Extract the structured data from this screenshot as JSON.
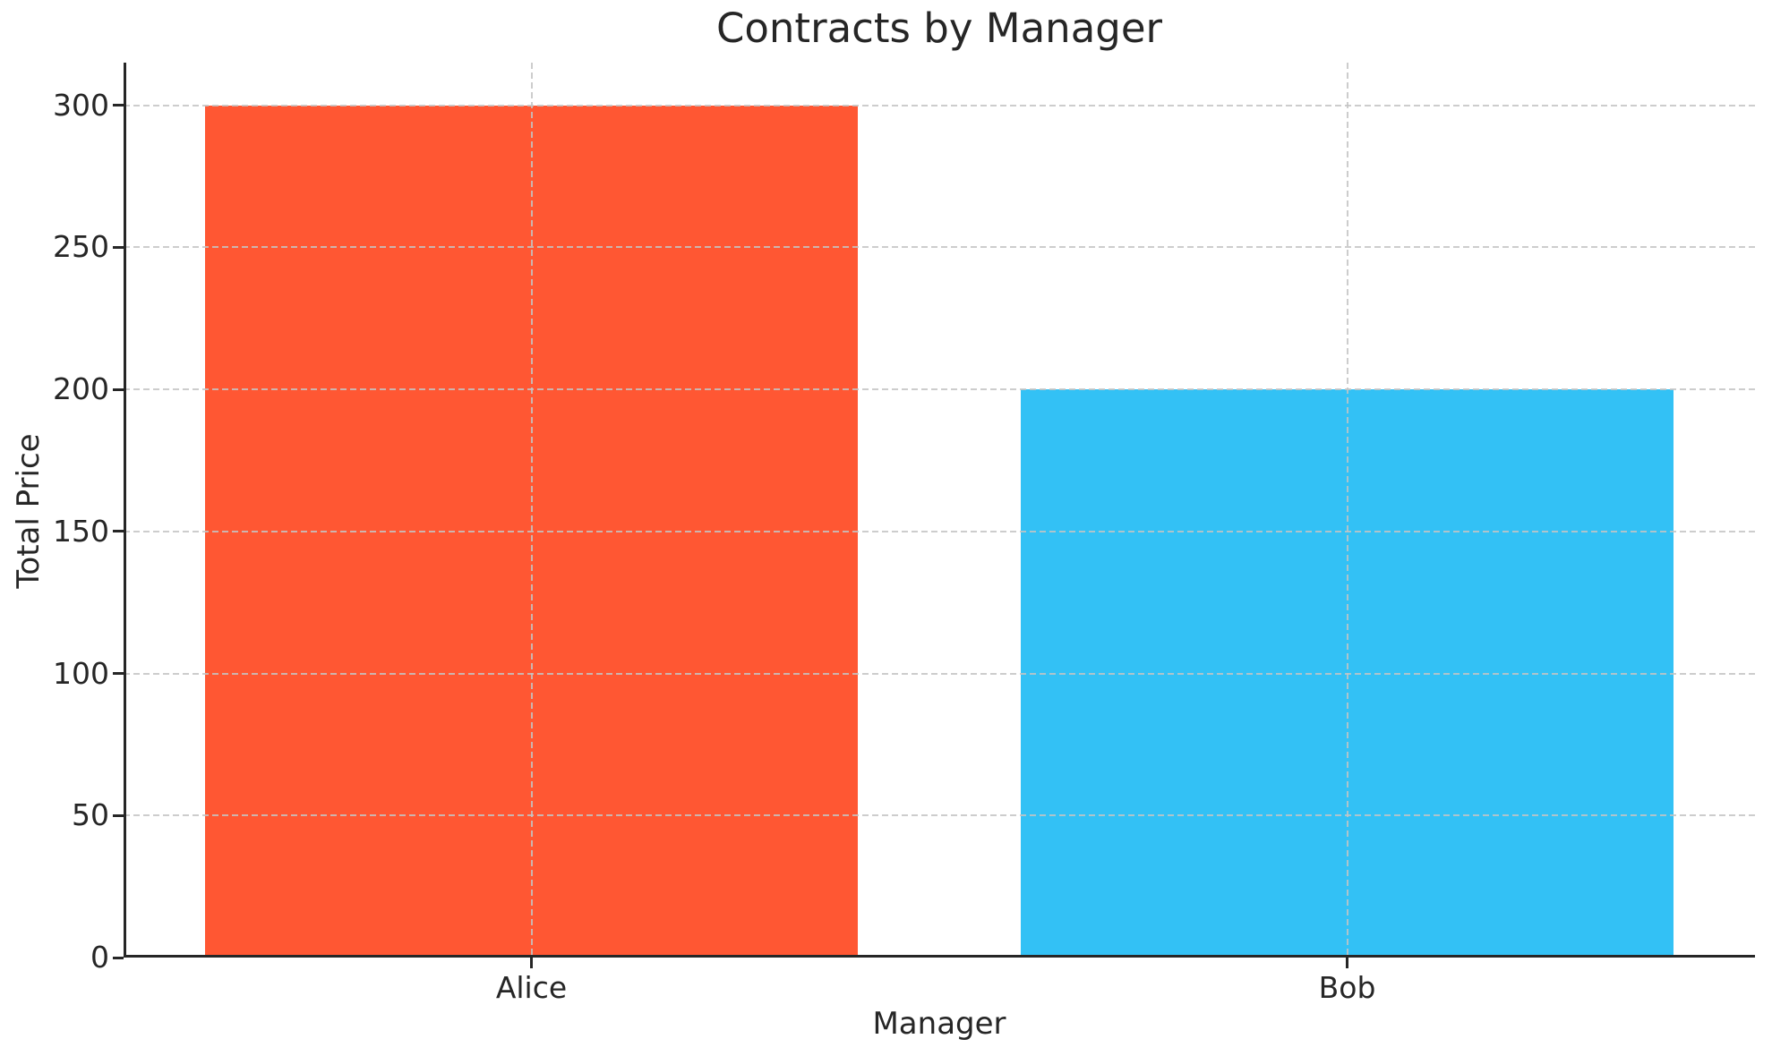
{
  "chart_data": {
    "type": "bar",
    "title": "Contracts by Manager",
    "xlabel": "Manager",
    "ylabel": "Total Price",
    "categories": [
      "Alice",
      "Bob"
    ],
    "values": [
      300,
      200
    ],
    "bar_colors": [
      "#FF5733",
      "#33C1F5"
    ],
    "yticks": [
      0,
      50,
      100,
      150,
      200,
      250,
      300
    ],
    "ytick_labels": [
      "0",
      "50",
      "100",
      "150",
      "200",
      "250",
      "300"
    ],
    "ylim": [
      0,
      315
    ],
    "xlim": [
      -0.5,
      1.5
    ],
    "bar_width": 0.8,
    "grid": true,
    "grid_line_style": "dashed",
    "grid_color": "#c4c4c4",
    "axis_color": "#262626",
    "text_color": "#262626",
    "background_color": "#ffffff",
    "legend_position": "none"
  }
}
